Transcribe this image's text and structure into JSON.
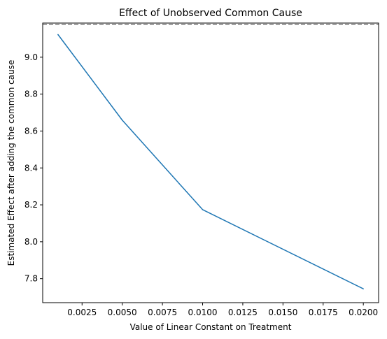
{
  "chart_data": {
    "type": "line",
    "title": "Effect of Unobserved Common Cause",
    "xlabel": "Value of Linear Constant on Treatment",
    "ylabel": "Estimated Effect after adding the common cause",
    "x": [
      0.001,
      0.005,
      0.01,
      0.02
    ],
    "series": [
      {
        "values": [
          9.123,
          8.659,
          8.174,
          7.745
        ],
        "color": "#1f77b4"
      }
    ],
    "reference_line": {
      "y": 9.178,
      "style": "dashed",
      "color": "#808080"
    },
    "xlim": [
      5e-05,
      0.02095
    ],
    "ylim": [
      7.67,
      9.185
    ],
    "x_ticks": [
      0.0025,
      0.005,
      0.0075,
      0.01,
      0.0125,
      0.015,
      0.0175,
      0.02
    ],
    "x_tick_labels": [
      "0.0025",
      "0.0050",
      "0.0075",
      "0.0100",
      "0.0125",
      "0.0150",
      "0.0175",
      "0.0200"
    ],
    "y_ticks": [
      7.8,
      8.0,
      8.2,
      8.4,
      8.6,
      8.8,
      9.0
    ],
    "y_tick_labels": [
      "7.8",
      "8.0",
      "8.2",
      "8.4",
      "8.6",
      "8.8",
      "9.0"
    ],
    "grid": false,
    "legend": "none"
  }
}
